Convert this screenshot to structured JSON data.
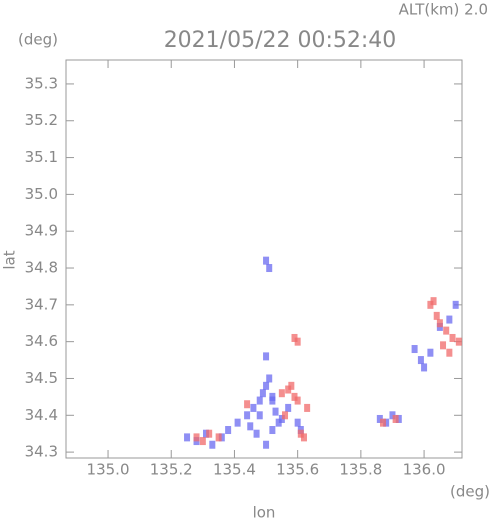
{
  "chart_data": {
    "type": "scatter",
    "title": "2021/05/22 00:52:40",
    "subtitle": "ALT(km) 2.0",
    "y_unit": "(deg)",
    "x_unit": "(deg)",
    "x_label": "lon",
    "y_label": "lat",
    "xlim": [
      134.867,
      136.12
    ],
    "ylim": [
      34.284,
      35.365
    ],
    "xticks": [
      {
        "value": 135.0,
        "label": "135.0"
      },
      135.2,
      135.4,
      135.6,
      135.8,
      {
        "value": 136.0,
        "label": "136.0"
      }
    ],
    "yticks": [
      34.3,
      34.4,
      34.5,
      34.6,
      34.7,
      34.8,
      34.9,
      {
        "value": 35.0,
        "label": "35.0"
      },
      35.1,
      35.2,
      35.3
    ],
    "series": [
      {
        "color": "#6a6af0",
        "x": [
          135.25,
          135.28,
          135.31,
          135.33,
          135.36,
          135.38,
          135.41,
          135.44,
          135.46,
          135.48,
          135.49,
          135.5,
          135.51,
          135.52,
          135.53,
          135.54,
          135.47,
          135.5,
          135.52,
          135.55,
          135.57,
          135.6,
          135.61,
          135.5,
          135.51,
          135.86,
          135.88,
          135.9,
          135.92,
          135.99,
          136.0,
          136.02,
          135.97,
          136.05,
          136.08,
          136.1,
          135.5,
          135.52,
          135.48,
          135.45
        ],
        "values": [
          34.34,
          34.33,
          34.35,
          34.32,
          34.34,
          34.36,
          34.38,
          34.4,
          34.42,
          34.44,
          34.46,
          34.48,
          34.5,
          34.45,
          34.41,
          34.38,
          34.35,
          34.32,
          34.36,
          34.39,
          34.42,
          34.38,
          34.36,
          34.82,
          34.8,
          34.39,
          34.38,
          34.4,
          34.39,
          34.55,
          34.53,
          34.57,
          34.58,
          34.64,
          34.66,
          34.7,
          34.56,
          34.44,
          34.4,
          34.37
        ]
      },
      {
        "color": "#f06a6a",
        "x": [
          135.28,
          135.3,
          135.32,
          135.35,
          135.44,
          135.55,
          135.57,
          135.58,
          135.59,
          135.6,
          135.56,
          135.62,
          135.61,
          135.63,
          135.87,
          135.91,
          136.02,
          136.03,
          136.05,
          136.07,
          136.09,
          136.11,
          136.04,
          136.06,
          136.08,
          135.59,
          135.6
        ],
        "values": [
          34.34,
          34.33,
          34.35,
          34.34,
          34.43,
          34.46,
          34.47,
          34.48,
          34.45,
          34.44,
          34.4,
          34.34,
          34.35,
          34.42,
          34.38,
          34.39,
          34.7,
          34.71,
          34.65,
          34.63,
          34.61,
          34.6,
          34.67,
          34.59,
          34.57,
          34.61,
          34.6
        ]
      }
    ]
  }
}
